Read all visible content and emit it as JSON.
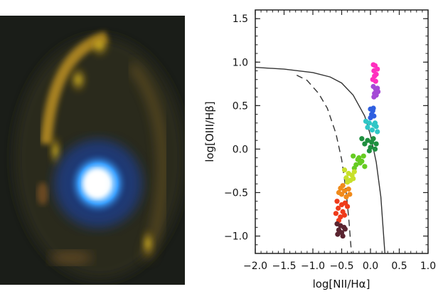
{
  "image": {
    "description_icon": "galaxy-image"
  },
  "chart_data": {
    "type": "scatter",
    "xlabel": "log[NII/Hα]",
    "ylabel": "log[OIII/Hβ]",
    "xlim": [
      -2.0,
      1.0
    ],
    "ylim": [
      -1.2,
      1.6
    ],
    "xticks": [
      -2.0,
      -1.5,
      -1.0,
      -0.5,
      0.0,
      0.5,
      1.0
    ],
    "xtick_labels": [
      "−2.0",
      "−1.5",
      "−1.0",
      "−0.5",
      "0.0",
      "0.5",
      "1.0"
    ],
    "yticks": [
      -1.0,
      -0.5,
      0.0,
      0.5,
      1.0,
      1.5
    ],
    "ytick_labels": [
      "−1.0",
      "−0.5",
      "0.0",
      "0.5",
      "1.0",
      "1.5"
    ],
    "grid": false,
    "curves": [
      {
        "name": "",
        "style": "solid",
        "x": [
          -2.0,
          -1.5,
          -1.0,
          -0.7,
          -0.5,
          -0.3,
          -0.1,
          0.0,
          0.1,
          0.18,
          0.25
        ],
        "y": [
          0.94,
          0.92,
          0.88,
          0.83,
          0.76,
          0.62,
          0.38,
          0.16,
          -0.15,
          -0.55,
          -1.2
        ]
      },
      {
        "name": "",
        "style": "dashed",
        "x": [
          -1.28,
          -1.1,
          -0.9,
          -0.75,
          -0.6,
          -0.5,
          -0.42,
          -0.37,
          -0.33
        ],
        "y": [
          0.85,
          0.79,
          0.64,
          0.47,
          0.18,
          -0.12,
          -0.5,
          -0.85,
          -1.2
        ]
      }
    ],
    "series": [
      {
        "name": "",
        "color": "#ff2fbf",
        "points": [
          [
            0.05,
            0.97
          ],
          [
            0.08,
            0.96
          ],
          [
            0.06,
            0.9
          ],
          [
            0.1,
            0.86
          ],
          [
            0.04,
            0.8
          ],
          [
            0.09,
            0.78
          ],
          [
            0.12,
            0.92
          ],
          [
            0.07,
            0.84
          ]
        ]
      },
      {
        "name": "",
        "color": "#a44ad6",
        "points": [
          [
            0.05,
            0.72
          ],
          [
            0.09,
            0.69
          ],
          [
            0.12,
            0.7
          ],
          [
            0.07,
            0.64
          ],
          [
            0.1,
            0.62
          ],
          [
            0.13,
            0.66
          ],
          [
            0.06,
            0.6
          ]
        ]
      },
      {
        "name": "",
        "color": "#2f5fe0",
        "points": [
          [
            0.0,
            0.46
          ],
          [
            0.04,
            0.44
          ],
          [
            0.02,
            0.4
          ],
          [
            0.06,
            0.38
          ],
          [
            0.0,
            0.36
          ],
          [
            0.05,
            0.47
          ]
        ]
      },
      {
        "name": "",
        "color": "#2fc6c6",
        "points": [
          [
            -0.08,
            0.32
          ],
          [
            -0.02,
            0.3
          ],
          [
            0.06,
            0.28
          ],
          [
            0.1,
            0.26
          ],
          [
            -0.05,
            0.25
          ],
          [
            0.03,
            0.22
          ],
          [
            0.08,
            0.3
          ],
          [
            0.12,
            0.2
          ]
        ]
      },
      {
        "name": "",
        "color": "#1f8f3f",
        "points": [
          [
            -0.15,
            0.12
          ],
          [
            -0.05,
            0.1
          ],
          [
            0.02,
            0.08
          ],
          [
            0.1,
            0.06
          ],
          [
            0.0,
            0.02
          ],
          [
            0.08,
            0.0
          ],
          [
            -0.1,
            0.06
          ],
          [
            0.05,
            0.12
          ],
          [
            -0.02,
            -0.02
          ]
        ]
      },
      {
        "name": "",
        "color": "#66cc22",
        "points": [
          [
            -0.3,
            -0.08
          ],
          [
            -0.22,
            -0.12
          ],
          [
            -0.15,
            -0.14
          ],
          [
            -0.25,
            -0.18
          ],
          [
            -0.1,
            -0.2
          ],
          [
            -0.2,
            -0.1
          ],
          [
            -0.12,
            -0.08
          ],
          [
            -0.28,
            -0.22
          ],
          [
            -0.18,
            -0.16
          ]
        ]
      },
      {
        "name": "",
        "color": "#c8e02a",
        "points": [
          [
            -0.45,
            -0.24
          ],
          [
            -0.38,
            -0.28
          ],
          [
            -0.32,
            -0.3
          ],
          [
            -0.42,
            -0.33
          ],
          [
            -0.35,
            -0.36
          ],
          [
            -0.28,
            -0.26
          ],
          [
            -0.4,
            -0.38
          ],
          [
            -0.3,
            -0.34
          ]
        ]
      },
      {
        "name": "",
        "color": "#f08a1a",
        "points": [
          [
            -0.52,
            -0.45
          ],
          [
            -0.45,
            -0.48
          ],
          [
            -0.38,
            -0.46
          ],
          [
            -0.5,
            -0.52
          ],
          [
            -0.42,
            -0.55
          ],
          [
            -0.55,
            -0.5
          ],
          [
            -0.36,
            -0.52
          ],
          [
            -0.48,
            -0.42
          ]
        ]
      },
      {
        "name": "",
        "color": "#ef3b1b",
        "points": [
          [
            -0.58,
            -0.6
          ],
          [
            -0.5,
            -0.64
          ],
          [
            -0.44,
            -0.62
          ],
          [
            -0.56,
            -0.68
          ],
          [
            -0.48,
            -0.72
          ],
          [
            -0.4,
            -0.66
          ],
          [
            -0.6,
            -0.74
          ],
          [
            -0.52,
            -0.78
          ],
          [
            -0.45,
            -0.76
          ],
          [
            -0.55,
            -0.82
          ]
        ]
      },
      {
        "name": "",
        "color": "#5a2430",
        "points": [
          [
            -0.58,
            -0.86
          ],
          [
            -0.52,
            -0.88
          ],
          [
            -0.46,
            -0.9
          ],
          [
            -0.55,
            -0.93
          ],
          [
            -0.5,
            -0.96
          ],
          [
            -0.44,
            -0.92
          ],
          [
            -0.57,
            -0.98
          ],
          [
            -0.48,
            -1.0
          ]
        ]
      }
    ]
  }
}
